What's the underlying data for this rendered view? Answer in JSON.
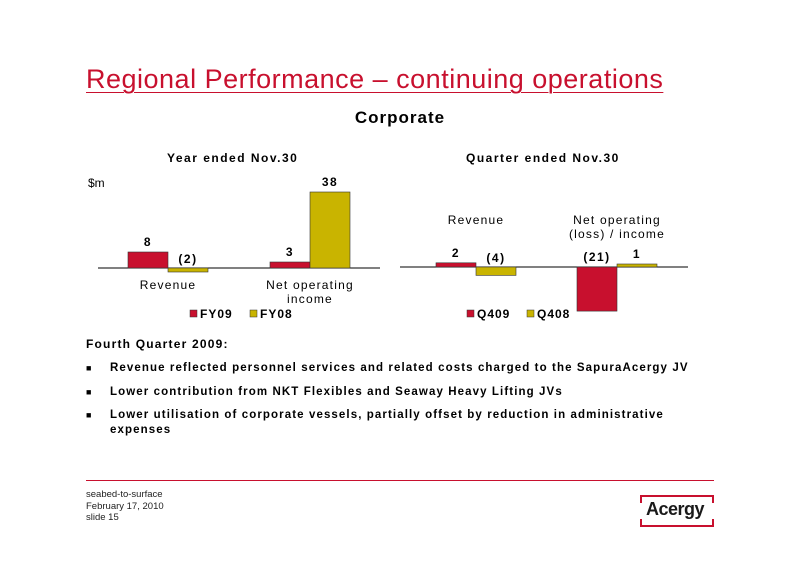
{
  "slide": {
    "title": "Regional Performance – continuing operations",
    "subtitle": "Corporate"
  },
  "chart_data": [
    {
      "type": "bar",
      "title": "Year ended Nov.30",
      "ylabel": "$m",
      "categories": [
        "Revenue",
        "Net operating income"
      ],
      "series": [
        {
          "name": "FY09",
          "values": [
            8,
            3
          ],
          "labels": [
            "8",
            "3"
          ],
          "color": "#c8102e"
        },
        {
          "name": "FY08",
          "values": [
            -2,
            38
          ],
          "labels": [
            "(2)",
            "38"
          ],
          "color": "#c9b400"
        }
      ],
      "grid": false,
      "legend_position": "bottom"
    },
    {
      "type": "bar",
      "title": "Quarter ended Nov.30",
      "categories": [
        "Revenue",
        "Net operating (loss) / income"
      ],
      "series": [
        {
          "name": "Q409",
          "values": [
            2,
            -21
          ],
          "labels": [
            "2",
            "(21)"
          ],
          "color": "#c8102e"
        },
        {
          "name": "Q408",
          "values": [
            -4,
            1
          ],
          "labels": [
            "(4)",
            "1"
          ],
          "color": "#c9b400"
        }
      ],
      "grid": false,
      "legend_position": "bottom"
    }
  ],
  "commentary": {
    "heading": "Fourth Quarter 2009:",
    "bullet_mark": "■",
    "bullets": [
      "Revenue reflected personnel services and related costs charged to the SapuraAcergy JV",
      "Lower contribution from NKT Flexibles and Seaway Heavy Lifting JVs",
      "Lower utilisation of corporate vessels, partially offset by reduction in administrative expenses"
    ]
  },
  "footer": {
    "line1": "seabed-to-surface",
    "line2": "February 17, 2010",
    "line3": "slide 15"
  },
  "logo": {
    "text": "Acergy"
  }
}
